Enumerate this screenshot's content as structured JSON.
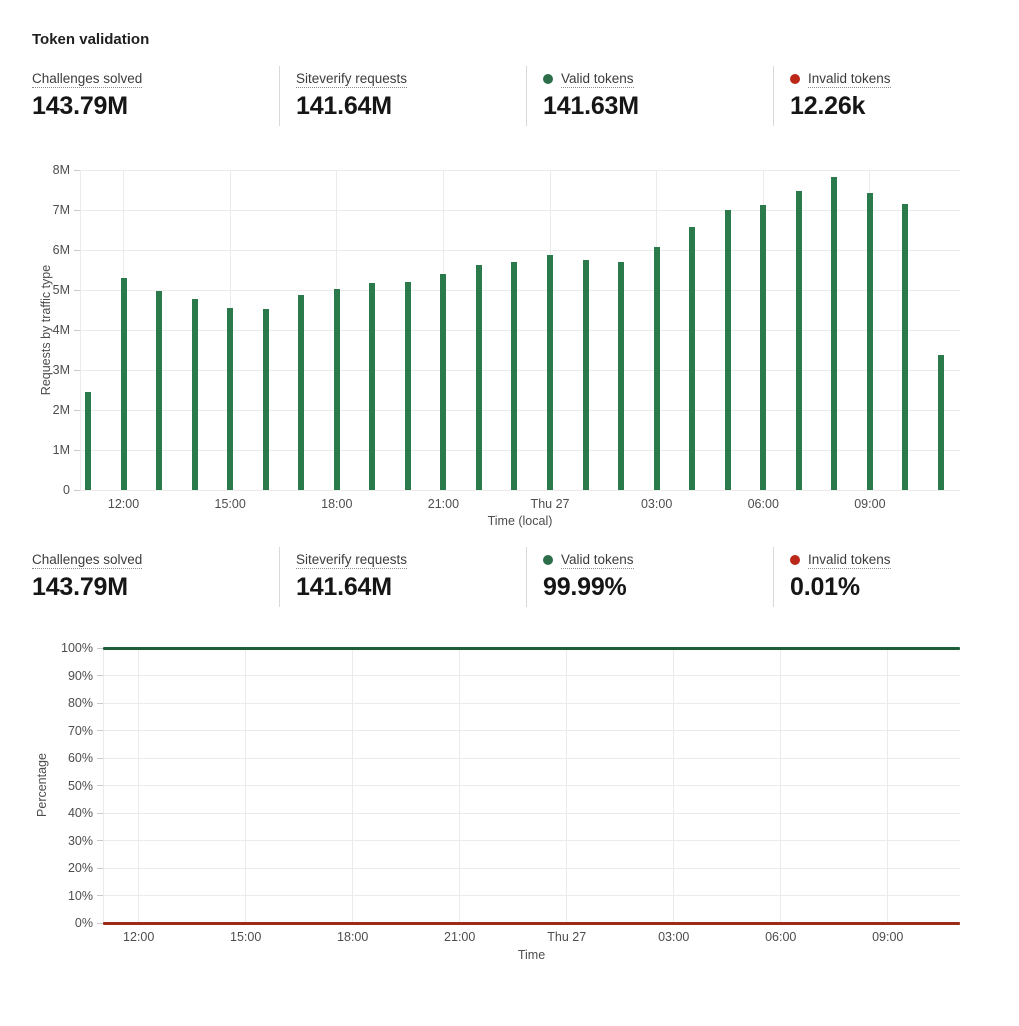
{
  "page": {
    "title": "Token validation"
  },
  "stats_rows": [
    {
      "name": "counts",
      "items": [
        {
          "label": "Challenges solved",
          "value": "143.79M"
        },
        {
          "label": "Siteverify requests",
          "value": "141.64M"
        },
        {
          "label": "Valid tokens",
          "value": "141.63M",
          "dot_color": "#2c6e49"
        },
        {
          "label": "Invalid tokens",
          "value": "12.26k",
          "dot_color": "#bb2718"
        }
      ]
    },
    {
      "name": "percentages",
      "items": [
        {
          "label": "Challenges solved",
          "value": "143.79M"
        },
        {
          "label": "Siteverify requests",
          "value": "141.64M"
        },
        {
          "label": "Valid tokens",
          "value": "99.99%",
          "dot_color": "#2c6e49"
        },
        {
          "label": "Invalid tokens",
          "value": "0.01%",
          "dot_color": "#bb2718"
        }
      ]
    }
  ],
  "chart_data": [
    {
      "type": "bar",
      "title": "Requests by traffic type",
      "ylabel": "Requests by traffic type",
      "xlabel": "Time (local)",
      "ylim": [
        0,
        8000000
      ],
      "grid": true,
      "legend": "none",
      "bar_interval": "1h",
      "y_ticks": [
        "8M",
        "7M",
        "6M",
        "5M",
        "4M",
        "3M",
        "2M",
        "1M",
        "0"
      ],
      "x_ticks": [
        {
          "hour": 1,
          "label": "12:00"
        },
        {
          "hour": 4,
          "label": "15:00"
        },
        {
          "hour": 7,
          "label": "18:00"
        },
        {
          "hour": 10,
          "label": "21:00"
        },
        {
          "hour": 13,
          "label": "Thu 27"
        },
        {
          "hour": 16,
          "label": "03:00"
        },
        {
          "hour": 19,
          "label": "06:00"
        },
        {
          "hour": 22,
          "label": "09:00"
        }
      ],
      "series": [
        {
          "name": "Valid tokens",
          "color": "#2a7a4b",
          "values_millions": [
            2.45,
            5.3,
            4.98,
            4.78,
            4.55,
            4.53,
            4.88,
            5.02,
            5.17,
            5.2,
            5.4,
            5.62,
            5.7,
            5.88,
            5.75,
            5.7,
            6.08,
            6.58,
            7.0,
            7.12,
            7.47,
            7.82,
            7.42,
            7.15,
            3.38
          ]
        }
      ]
    },
    {
      "type": "line",
      "title": "Percentage",
      "ylabel": "Percentage",
      "xlabel": "Time",
      "ylim": [
        0,
        100
      ],
      "grid": true,
      "legend": "none",
      "y_ticks": [
        "100%",
        "90%",
        "80%",
        "70%",
        "60%",
        "50%",
        "40%",
        "30%",
        "20%",
        "10%",
        "0%"
      ],
      "x_ticks": [
        {
          "hour": 1,
          "label": "12:00"
        },
        {
          "hour": 4,
          "label": "15:00"
        },
        {
          "hour": 7,
          "label": "18:00"
        },
        {
          "hour": 10,
          "label": "21:00"
        },
        {
          "hour": 13,
          "label": "Thu 27"
        },
        {
          "hour": 16,
          "label": "03:00"
        },
        {
          "hour": 19,
          "label": "06:00"
        },
        {
          "hour": 22,
          "label": "09:00"
        }
      ],
      "series": [
        {
          "name": "Valid tokens",
          "color": "#1e5e39",
          "value_percent": 100
        },
        {
          "name": "Invalid tokens",
          "color": "#9c2c18",
          "value_percent": 0
        }
      ]
    }
  ]
}
